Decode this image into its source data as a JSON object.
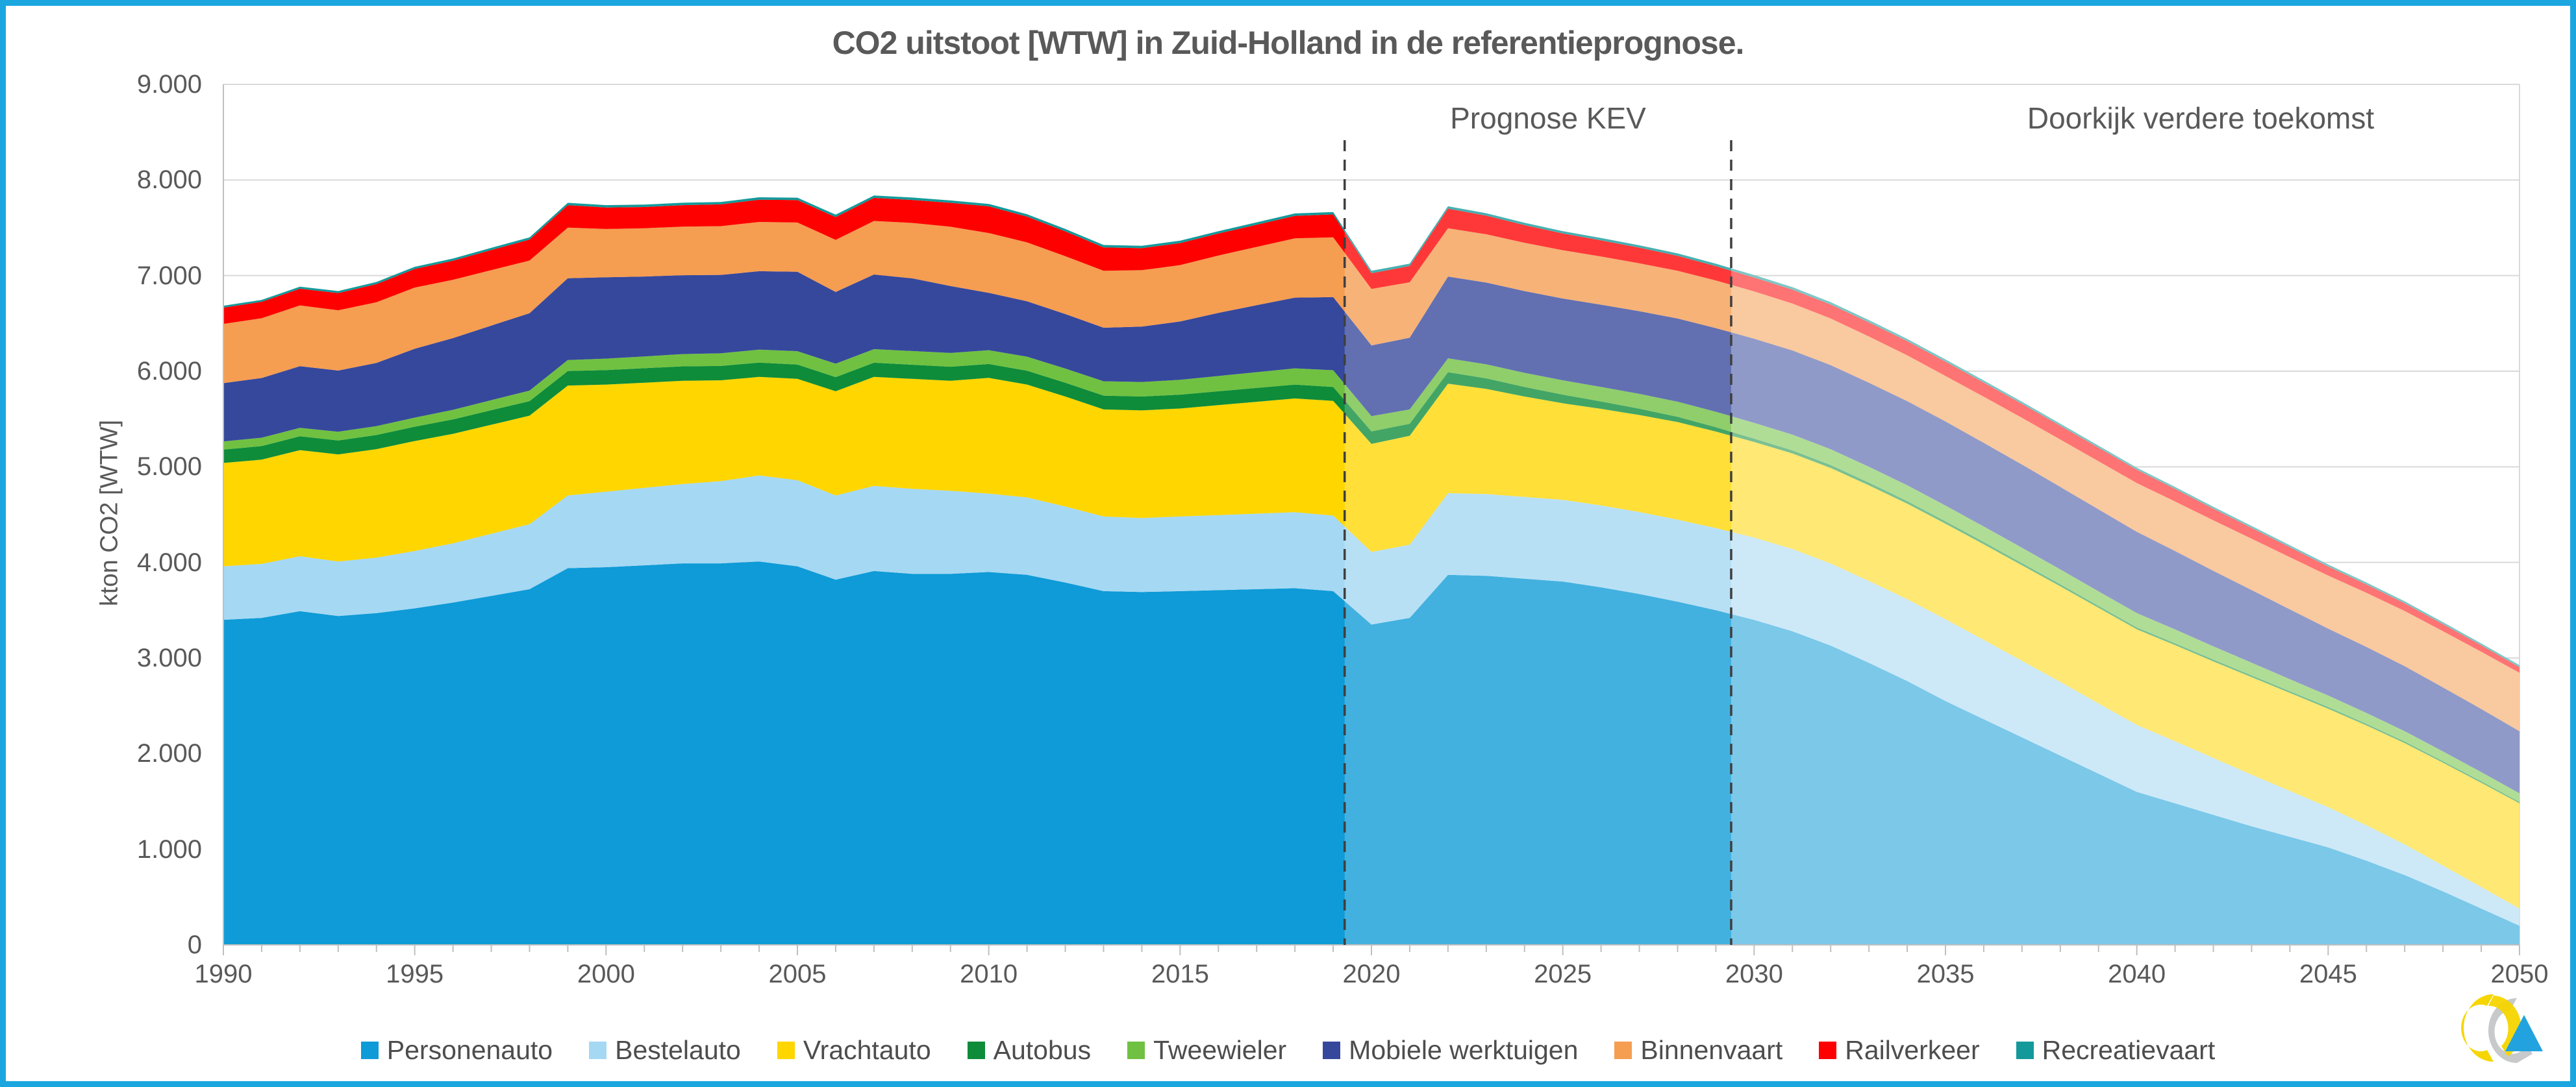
{
  "title": "CO2 uitstoot [WTW] in Zuid-Holland in de referentieprognose.",
  "annotations": {
    "prognose_kev": "Prognose KEV",
    "doorkijk": "Doorkijk verdere toekomst"
  },
  "y_axis": {
    "title": "kton CO2 [WTW]",
    "tick_labels": [
      "0",
      "1.000",
      "2.000",
      "3.000",
      "4.000",
      "5.000",
      "6.000",
      "7.000",
      "8.000",
      "9.000"
    ]
  },
  "x_axis": {
    "tick_labels": [
      1990,
      1995,
      2000,
      2005,
      2010,
      2015,
      2020,
      2025,
      2030,
      2035,
      2040,
      2045,
      2050
    ]
  },
  "colors": {
    "frame_border": "#1ca6e0",
    "gridline": "#d9d9d9",
    "axis_line": "#bfbfbf",
    "dashed_line": "#3f3f3f",
    "text": "#595959"
  },
  "chart_data": {
    "type": "area",
    "stacked": true,
    "title": "CO2 uitstoot [WTW] in Zuid-Holland in de referentieprognose.",
    "xlabel": "",
    "ylabel": "kton CO2 [WTW]",
    "ylim": [
      0,
      9000
    ],
    "grid": true,
    "legend_position": "bottom",
    "x": [
      1990,
      1991,
      1992,
      1993,
      1994,
      1995,
      1996,
      1997,
      1998,
      1999,
      2000,
      2001,
      2002,
      2003,
      2004,
      2005,
      2006,
      2007,
      2008,
      2009,
      2010,
      2011,
      2012,
      2013,
      2014,
      2015,
      2016,
      2017,
      2018,
      2019,
      2020,
      2021,
      2022,
      2023,
      2024,
      2025,
      2026,
      2027,
      2028,
      2029,
      2030,
      2031,
      2032,
      2033,
      2034,
      2035,
      2036,
      2037,
      2038,
      2039,
      2040,
      2041,
      2042,
      2043,
      2044,
      2045,
      2046,
      2047,
      2048,
      2049,
      2050
    ],
    "dashed_lines_x": [
      2019.3,
      2029.4
    ],
    "forecast_zones": [
      {
        "from": 2019.3,
        "to": 2029.4,
        "white_overlay": 0.22,
        "label": "Prognose KEV"
      },
      {
        "from": 2029.4,
        "to": 2050,
        "white_overlay": 0.45,
        "label": "Doorkijk verdere toekomst"
      }
    ],
    "series": [
      {
        "name": "Personenauto",
        "color": "#0f9bd7",
        "values": [
          3400,
          3420,
          3490,
          3440,
          3470,
          3520,
          3580,
          3650,
          3720,
          3940,
          3950,
          3970,
          3990,
          3990,
          4010,
          3960,
          3820,
          3910,
          3880,
          3880,
          3900,
          3870,
          3790,
          3700,
          3690,
          3700,
          3710,
          3720,
          3730,
          3700,
          3350,
          3420,
          3870,
          3860,
          3830,
          3800,
          3740,
          3670,
          3590,
          3500,
          3400,
          3280,
          3130,
          2950,
          2760,
          2550,
          2360,
          2170,
          1980,
          1790,
          1600,
          1480,
          1360,
          1240,
          1130,
          1020,
          880,
          730,
          560,
          380,
          200
        ]
      },
      {
        "name": "Bestelauto",
        "color": "#a5d8f3",
        "values": [
          560,
          565,
          575,
          570,
          580,
          600,
          620,
          650,
          680,
          760,
          790,
          810,
          830,
          860,
          900,
          900,
          880,
          890,
          890,
          870,
          820,
          810,
          795,
          780,
          775,
          780,
          785,
          790,
          795,
          790,
          760,
          765,
          855,
          855,
          855,
          855,
          856,
          857,
          858,
          859,
          860,
          860,
          858,
          856,
          855,
          855,
          830,
          800,
          770,
          735,
          700,
          650,
          595,
          540,
          480,
          420,
          370,
          320,
          270,
          225,
          180
        ]
      },
      {
        "name": "Vrachtauto",
        "color": "#ffd600",
        "values": [
          1080,
          1090,
          1110,
          1120,
          1135,
          1150,
          1145,
          1140,
          1135,
          1150,
          1120,
          1100,
          1080,
          1055,
          1030,
          1060,
          1090,
          1140,
          1150,
          1150,
          1210,
          1180,
          1150,
          1120,
          1125,
          1130,
          1150,
          1170,
          1190,
          1200,
          1130,
          1140,
          1145,
          1100,
          1050,
          1010,
          1010,
          1015,
          1020,
          1010,
          1000,
          1000,
          1000,
          1000,
          1000,
          1000,
          1000,
          1000,
          1000,
          1000,
          1000,
          1005,
          1010,
          1020,
          1025,
          1030,
          1045,
          1060,
          1075,
          1090,
          1100
        ]
      },
      {
        "name": "Autobus",
        "color": "#0e8c3a",
        "values": [
          140,
          142,
          144,
          146,
          148,
          150,
          151,
          152,
          152,
          152,
          152,
          151,
          151,
          150,
          150,
          150,
          148,
          149,
          148,
          147,
          145,
          145,
          145,
          145,
          145,
          145,
          145,
          145,
          145,
          145,
          130,
          125,
          120,
          110,
          100,
          90,
          78,
          66,
          55,
          45,
          35,
          32,
          31,
          29,
          27,
          25,
          24,
          23,
          22,
          21,
          20,
          20,
          19,
          19,
          18,
          18,
          17,
          17,
          16,
          16,
          15
        ]
      },
      {
        "name": "Tweewieler",
        "color": "#70c141",
        "values": [
          85,
          87,
          89,
          91,
          93,
          95,
          100,
          105,
          110,
          115,
          120,
          124,
          128,
          132,
          136,
          140,
          141,
          142,
          143,
          144,
          145,
          147,
          148,
          150,
          152,
          155,
          160,
          165,
          170,
          175,
          160,
          150,
          145,
          147,
          148,
          150,
          152,
          155,
          158,
          162,
          165,
          165,
          165,
          165,
          165,
          165,
          162,
          160,
          155,
          152,
          150,
          144,
          138,
          132,
          126,
          120,
          114,
          108,
          102,
          96,
          90
        ]
      },
      {
        "name": "Mobiele werktuigen",
        "color": "#36489c",
        "values": [
          610,
          625,
          645,
          640,
          660,
          720,
          750,
          780,
          810,
          855,
          850,
          835,
          825,
          820,
          820,
          830,
          750,
          780,
          760,
          700,
          600,
          580,
          570,
          560,
          580,
          610,
          660,
          700,
          740,
          765,
          740,
          750,
          855,
          855,
          855,
          855,
          860,
          865,
          870,
          875,
          880,
          880,
          880,
          880,
          880,
          880,
          875,
          870,
          863,
          857,
          850,
          820,
          790,
          760,
          730,
          700,
          690,
          680,
          670,
          660,
          650
        ]
      },
      {
        "name": "Binnenvaart",
        "color": "#f59d51",
        "values": [
          620,
          625,
          635,
          630,
          635,
          640,
          610,
          580,
          550,
          530,
          505,
          505,
          508,
          510,
          515,
          515,
          545,
          560,
          580,
          620,
          625,
          615,
          605,
          595,
          590,
          590,
          600,
          610,
          620,
          625,
          590,
          580,
          505,
          505,
          505,
          505,
          503,
          501,
          499,
          497,
          495,
          491,
          487,
          483,
          479,
          475,
          482,
          489,
          496,
          503,
          510,
          519,
          528,
          537,
          546,
          555,
          566,
          577,
          588,
          599,
          610
        ]
      },
      {
        "name": "Railverkeer",
        "color": "#fe0000",
        "values": [
          170,
          172,
          175,
          180,
          190,
          195,
          200,
          210,
          220,
          235,
          225,
          222,
          225,
          228,
          233,
          235,
          238,
          242,
          240,
          250,
          280,
          270,
          260,
          245,
          230,
          230,
          230,
          232,
          235,
          240,
          165,
          170,
          205,
          195,
          185,
          175,
          169,
          163,
          157,
          151,
          145,
          146,
          147,
          148,
          149,
          150,
          148,
          146,
          144,
          142,
          140,
          131,
          122,
          113,
          104,
          95,
          88,
          81,
          74,
          67,
          60
        ]
      },
      {
        "name": "Recreatievaart",
        "color": "#14999a",
        "values": [
          20,
          20,
          21,
          21,
          22,
          22,
          22,
          23,
          23,
          24,
          25,
          25,
          25,
          25,
          25,
          25,
          25,
          25,
          25,
          25,
          25,
          25,
          25,
          25,
          25,
          25,
          25,
          25,
          25,
          25,
          25,
          25,
          25,
          25,
          25,
          25,
          25,
          25,
          25,
          25,
          25,
          25,
          24,
          24,
          23,
          23,
          22,
          22,
          21,
          21,
          20,
          20,
          20,
          20,
          20,
          20,
          20,
          20,
          20,
          20,
          20
        ]
      }
    ]
  },
  "legend": {
    "items": [
      {
        "label": "Personenauto",
        "color": "#0f9bd7"
      },
      {
        "label": "Bestelauto",
        "color": "#a5d8f3"
      },
      {
        "label": "Vrachtauto",
        "color": "#ffd600"
      },
      {
        "label": "Autobus",
        "color": "#0e8c3a"
      },
      {
        "label": "Tweewieler",
        "color": "#70c141"
      },
      {
        "label": "Mobiele werktuigen",
        "color": "#36489c"
      },
      {
        "label": "Binnenvaart",
        "color": "#f59d51"
      },
      {
        "label": "Railverkeer",
        "color": "#fe0000"
      },
      {
        "label": "Recreatievaart",
        "color": "#14999a"
      }
    ]
  },
  "logo": {
    "name": "goudappel-logo"
  }
}
